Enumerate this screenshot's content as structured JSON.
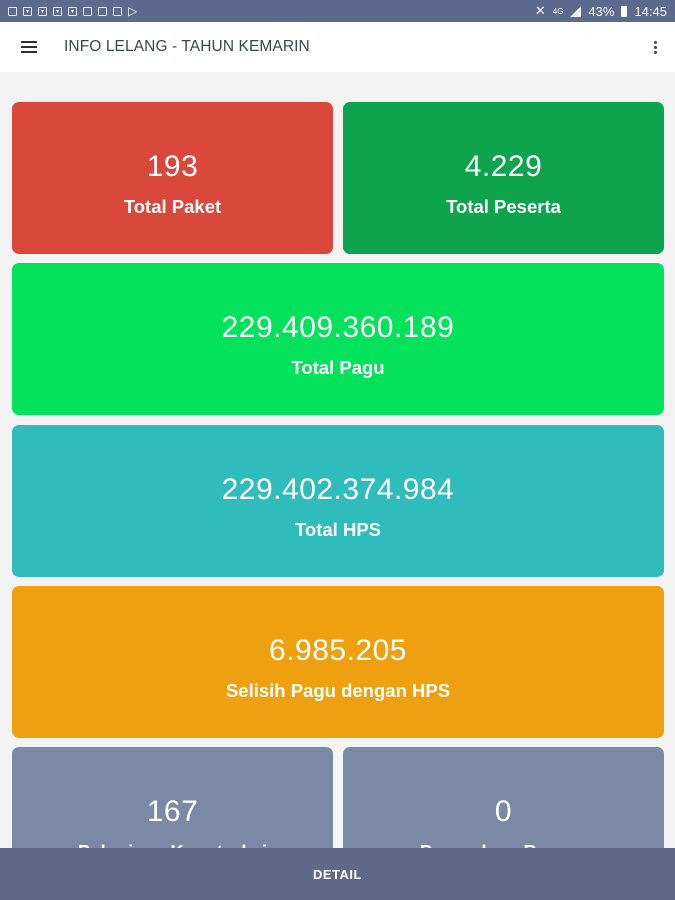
{
  "status_bar": {
    "battery_percent": "43%",
    "time": "14:45",
    "network_type": "4G"
  },
  "app_bar": {
    "title": "INFO LELANG - TAHUN KEMARIN"
  },
  "cards": [
    {
      "value": "193",
      "label": "Total Paket",
      "color": "#d9483b"
    },
    {
      "value": "4.229",
      "label": "Total Peserta",
      "color": "#0ea34d"
    },
    {
      "value": "229.409.360.189",
      "label": "Total Pagu",
      "color": "#04e25b"
    },
    {
      "value": "229.402.374.984",
      "label": "Total HPS",
      "color": "#2fbcbb"
    },
    {
      "value": "6.985.205",
      "label": "Selisih Pagu dengan HPS",
      "color": "#eea010"
    },
    {
      "value": "167",
      "label": "Pekerjaan Konstruksi",
      "color": "#7a8aa6"
    },
    {
      "value": "0",
      "label": "Pengadaan Barang",
      "color": "#7a8aa6"
    }
  ],
  "bottom_bar": {
    "label": "DETAIL"
  }
}
